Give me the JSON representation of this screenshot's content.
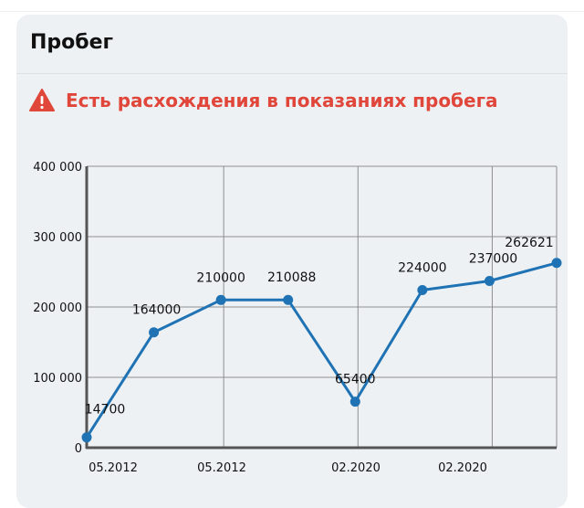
{
  "card": {
    "title": "Пробег",
    "warning": {
      "icon": "warning-triangle-icon",
      "text": "Есть расхождения в показаниях пробега",
      "color": "#e0463a"
    }
  },
  "chart_data": {
    "type": "line",
    "title": "",
    "xlabel": "",
    "ylabel": "",
    "y_ticks": [
      "0",
      "100 000",
      "200 000",
      "300 000",
      "400 000"
    ],
    "ylim": [
      0,
      400000
    ],
    "x_tick_labels": [
      "05.2012",
      "05.2012",
      "02.2020",
      "02.2020"
    ],
    "grid": true,
    "series": [
      {
        "color": "#1f73b4",
        "values": [
          14700,
          164000,
          210000,
          210088,
          65400,
          224000,
          237000,
          262621
        ],
        "labels": [
          "14700",
          "164000",
          "210000",
          "210088",
          "65400",
          "224000",
          "237000",
          "262621"
        ]
      }
    ]
  }
}
